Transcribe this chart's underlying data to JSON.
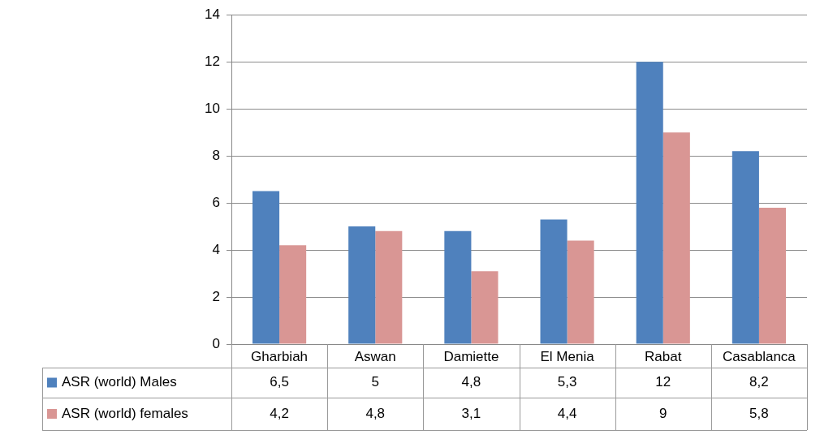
{
  "chart_data": {
    "type": "bar",
    "categories": [
      "Gharbiah",
      "Aswan",
      "Damiette",
      "El Menia",
      "Rabat",
      "Casablanca"
    ],
    "series": [
      {
        "name": "ASR (world) Males",
        "color": "#4f81bd",
        "values": [
          6.5,
          5,
          4.8,
          5.3,
          12,
          8.2
        ],
        "value_labels": [
          "6,5",
          "5",
          "4,8",
          "5,3",
          "12",
          "8,2"
        ]
      },
      {
        "name": "ASR (world) females",
        "color": "#d99694",
        "values": [
          4.2,
          4.8,
          3.1,
          4.4,
          9,
          5.8
        ],
        "value_labels": [
          "4,2",
          "4,8",
          "3,1",
          "4,4",
          "9",
          "5,8"
        ]
      }
    ],
    "ylim": [
      0,
      14
    ],
    "yticks": [
      0,
      2,
      4,
      6,
      8,
      10,
      12,
      14
    ],
    "grid": "y",
    "legend": "bottom"
  }
}
